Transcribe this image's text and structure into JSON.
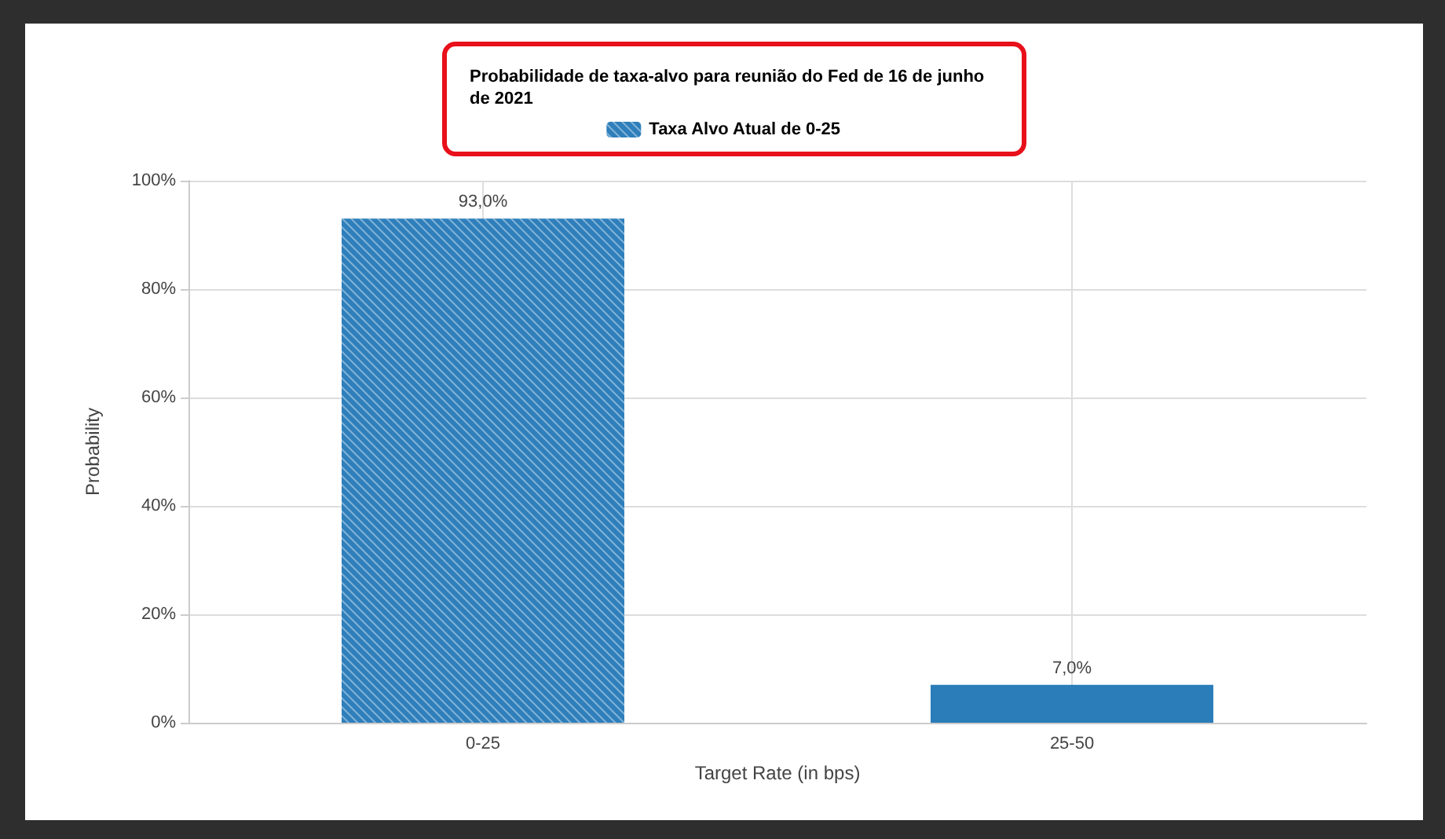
{
  "chart_data": {
    "type": "bar",
    "title": "Probabilidade de taxa-alvo para reunião do Fed de 16 de junho de 2021",
    "xlabel": "Target Rate (in bps)",
    "ylabel": "Probability",
    "categories": [
      "0-25",
      "25-50"
    ],
    "series": [
      {
        "name": "Taxa Alvo Atual de 0-25",
        "color": "#2e7fbb",
        "values": [
          93.0,
          null
        ],
        "value_labels": [
          "93,0%",
          null
        ]
      },
      {
        "color": "#2a7db8",
        "values": [
          null,
          7.0
        ],
        "value_labels": [
          null,
          "7,0%"
        ]
      }
    ],
    "ylim": [
      0,
      100
    ],
    "yticks": [
      {
        "value": 0,
        "label": "0%"
      },
      {
        "value": 20,
        "label": "20%"
      },
      {
        "value": 40,
        "label": "40%"
      },
      {
        "value": 60,
        "label": "60%"
      },
      {
        "value": 80,
        "label": "80%"
      },
      {
        "value": 100,
        "label": "100%"
      }
    ],
    "grid": true,
    "legend": "top"
  }
}
